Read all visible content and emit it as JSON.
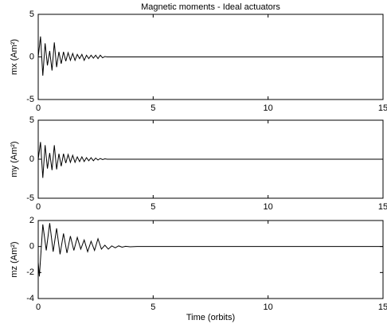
{
  "chart_data": [
    {
      "type": "line",
      "title": "Magnetic moments - Ideal actuators",
      "ylabel": "mx (Am²)",
      "x": [
        0,
        0.1,
        0.2,
        0.3,
        0.4,
        0.5,
        0.6,
        0.7,
        0.8,
        0.9,
        1.0,
        1.1,
        1.2,
        1.3,
        1.4,
        1.5,
        1.6,
        1.7,
        1.8,
        1.9,
        2.0,
        2.1,
        2.2,
        2.3,
        2.4,
        2.5,
        2.6,
        2.7,
        2.8,
        2.9,
        3.0,
        15
      ],
      "series": [
        {
          "color": "#000000",
          "values": [
            0,
            2.4,
            -2.2,
            1.6,
            -1.0,
            0.7,
            -1.6,
            1.7,
            -1.2,
            0.6,
            -0.8,
            0.6,
            -0.5,
            0.5,
            -0.4,
            0.4,
            -0.4,
            0.3,
            -0.2,
            0.3,
            -0.4,
            0.2,
            -0.2,
            0.2,
            -0.15,
            0.2,
            -0.2,
            0.2,
            -0.1,
            0.05,
            0,
            0
          ]
        }
      ],
      "xlim": [
        0,
        15
      ],
      "xticks": [
        0,
        5,
        10,
        15
      ],
      "ylim": [
        -5,
        5
      ],
      "yticks": [
        -5,
        0,
        5
      ]
    },
    {
      "type": "line",
      "ylabel": "my (Am²)",
      "x": [
        0,
        0.1,
        0.2,
        0.3,
        0.4,
        0.5,
        0.6,
        0.7,
        0.8,
        0.9,
        1.0,
        1.1,
        1.2,
        1.3,
        1.4,
        1.5,
        1.6,
        1.7,
        1.8,
        1.9,
        2.0,
        2.1,
        2.2,
        2.3,
        2.4,
        2.5,
        2.6,
        2.7,
        2.8,
        2.9,
        3.0,
        15
      ],
      "series": [
        {
          "color": "#000000",
          "values": [
            0,
            2.2,
            -2.4,
            1.8,
            -1.2,
            0.8,
            -1.4,
            1.8,
            -1.3,
            0.7,
            -0.9,
            0.7,
            -0.5,
            0.6,
            -0.4,
            0.5,
            -0.4,
            0.3,
            -0.3,
            0.3,
            -0.3,
            0.2,
            -0.2,
            0.2,
            -0.2,
            0.15,
            -0.1,
            0.1,
            -0.05,
            0.05,
            0,
            0
          ]
        }
      ],
      "xlim": [
        0,
        15
      ],
      "xticks": [
        0,
        5,
        10,
        15
      ],
      "ylim": [
        -5,
        5
      ],
      "yticks": [
        -5,
        0,
        5
      ]
    },
    {
      "type": "line",
      "ylabel": "mz (Am²)",
      "xlabel": "Time (orbits)",
      "x": [
        0,
        0.05,
        0.2,
        0.35,
        0.5,
        0.65,
        0.8,
        0.95,
        1.1,
        1.25,
        1.4,
        1.55,
        1.7,
        1.85,
        2.0,
        2.15,
        2.3,
        2.45,
        2.6,
        2.75,
        2.9,
        3.05,
        3.2,
        3.35,
        3.5,
        3.65,
        3.8,
        4.0,
        4.3,
        15
      ],
      "series": [
        {
          "color": "#000000",
          "values": [
            -1.2,
            -2.3,
            1.7,
            -0.3,
            1.8,
            -0.4,
            1.4,
            -0.6,
            1.0,
            -0.5,
            0.8,
            -0.3,
            0.7,
            -0.2,
            0.5,
            -0.4,
            0.4,
            -0.3,
            0.6,
            -0.2,
            0.1,
            -0.2,
            0.05,
            -0.1,
            0.05,
            -0.05,
            0.02,
            -0.02,
            0,
            0
          ]
        }
      ],
      "xlim": [
        0,
        15
      ],
      "xticks": [
        0,
        5,
        10,
        15
      ],
      "ylim": [
        -4,
        2
      ],
      "yticks": [
        -4,
        -2,
        0,
        2
      ]
    }
  ]
}
